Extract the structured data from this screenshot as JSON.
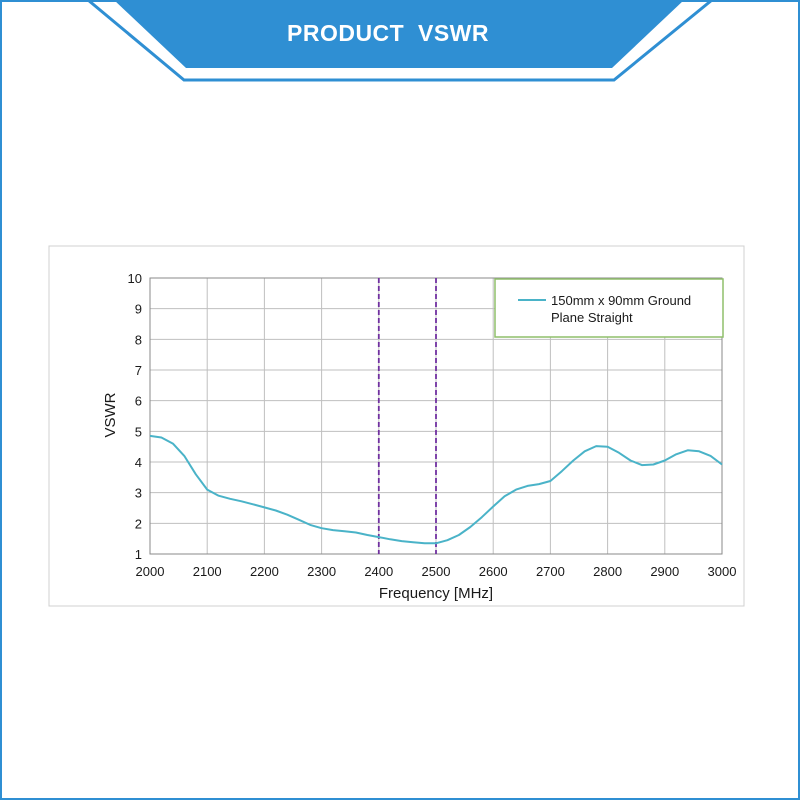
{
  "banner": {
    "title": "PRODUCT  VSWR"
  },
  "colors": {
    "brand_blue": "#2f8fd3",
    "series_line": "#4ab3c8",
    "band_marker": "#7030a0",
    "legend_border": "#8fbf6a",
    "grid": "#bfbfbf"
  },
  "chart_data": {
    "type": "line",
    "title": "",
    "xlabel": "Frequency [MHz]",
    "ylabel": "VSWR",
    "xlim": [
      2000,
      3000
    ],
    "ylim": [
      1,
      10
    ],
    "x_ticks": [
      2000,
      2100,
      2200,
      2300,
      2400,
      2500,
      2600,
      2700,
      2800,
      2900,
      3000
    ],
    "y_ticks": [
      1,
      2,
      3,
      4,
      5,
      6,
      7,
      8,
      9,
      10
    ],
    "grid": true,
    "legend_position": "top-right",
    "reference_lines_x": [
      2400,
      2500
    ],
    "series": [
      {
        "name": "150mm x 90mm Ground Plane Straight",
        "x": [
          2000,
          2020,
          2040,
          2060,
          2080,
          2100,
          2120,
          2140,
          2160,
          2180,
          2200,
          2220,
          2240,
          2260,
          2280,
          2300,
          2320,
          2340,
          2360,
          2380,
          2400,
          2420,
          2440,
          2460,
          2480,
          2500,
          2520,
          2540,
          2560,
          2580,
          2600,
          2620,
          2640,
          2660,
          2680,
          2700,
          2720,
          2740,
          2760,
          2780,
          2800,
          2820,
          2840,
          2860,
          2880,
          2900,
          2920,
          2940,
          2960,
          2980,
          3000
        ],
        "y": [
          4.85,
          4.8,
          4.6,
          4.2,
          3.6,
          3.1,
          2.9,
          2.8,
          2.72,
          2.62,
          2.52,
          2.42,
          2.28,
          2.12,
          1.95,
          1.84,
          1.78,
          1.74,
          1.7,
          1.62,
          1.55,
          1.48,
          1.42,
          1.38,
          1.35,
          1.35,
          1.45,
          1.62,
          1.88,
          2.2,
          2.55,
          2.88,
          3.1,
          3.22,
          3.28,
          3.38,
          3.7,
          4.05,
          4.35,
          4.52,
          4.5,
          4.3,
          4.05,
          3.9,
          3.92,
          4.05,
          4.25,
          4.38,
          4.35,
          4.2,
          3.92
        ]
      }
    ]
  }
}
